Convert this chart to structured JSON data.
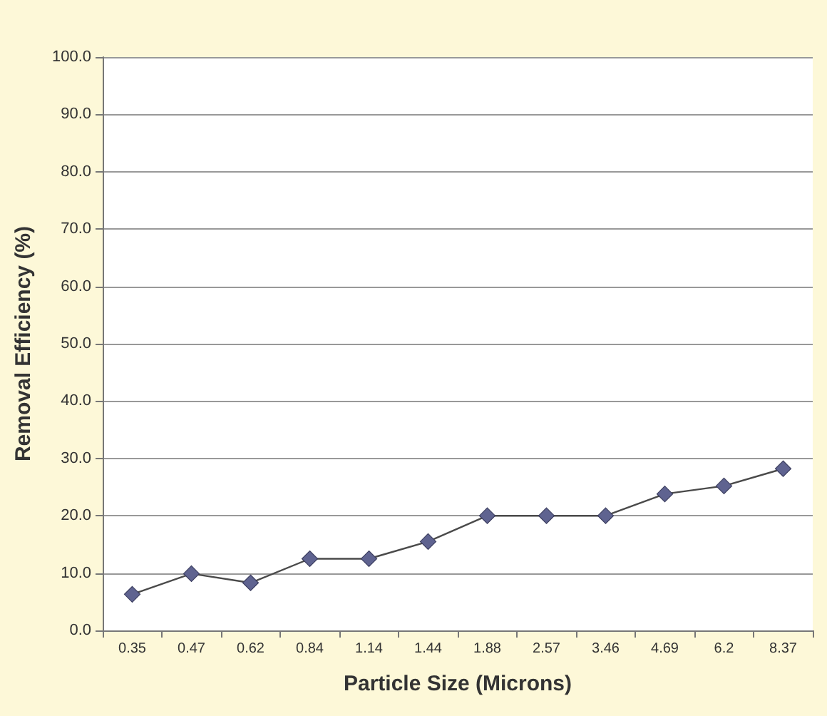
{
  "chart_data": {
    "type": "line",
    "xlabel": "Particle Size (Microns)",
    "ylabel": "Removal Efficiency (%)",
    "categories": [
      "0.35",
      "0.47",
      "0.62",
      "0.84",
      "1.14",
      "1.44",
      "1.88",
      "2.57",
      "3.46",
      "4.69",
      "6.2",
      "8.37"
    ],
    "series": [
      {
        "color": "#5f6390",
        "values": [
          6.3,
          9.9,
          8.3,
          12.5,
          12.5,
          15.5,
          20.0,
          20.0,
          20.0,
          23.8,
          25.2,
          28.2
        ]
      }
    ],
    "ylim": [
      0,
      100
    ],
    "yticks": [
      {
        "value": 0,
        "label": "0.0"
      },
      {
        "value": 10,
        "label": "10.0"
      },
      {
        "value": 20,
        "label": "20.0"
      },
      {
        "value": 30,
        "label": "30.0"
      },
      {
        "value": 40,
        "label": "40.0"
      },
      {
        "value": 50,
        "label": "50.0"
      },
      {
        "value": 60,
        "label": "60.0"
      },
      {
        "value": 70,
        "label": "70.0"
      },
      {
        "value": 80,
        "label": "80.0"
      },
      {
        "value": 90,
        "label": "90.0"
      },
      {
        "value": 100,
        "label": "100.0"
      }
    ],
    "grid": "y",
    "marker": "diamond",
    "line_style": "solid"
  }
}
